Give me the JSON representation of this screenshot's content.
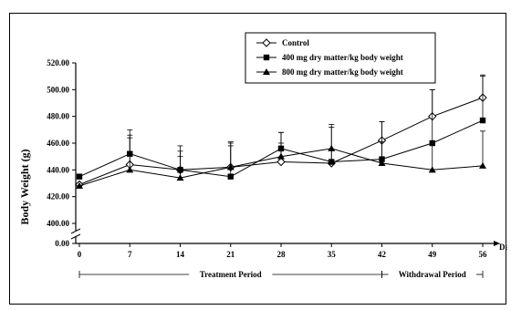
{
  "chart_data": {
    "type": "line",
    "title": "",
    "ylabel": "Body Weight (g)",
    "xlabel": "Da",
    "x": [
      0,
      7,
      14,
      21,
      28,
      35,
      42,
      49,
      56
    ],
    "ylim": [
      400,
      520
    ],
    "yticks": [
      "0.00",
      "400.00",
      "420.00",
      "440.00",
      "460.00",
      "480.00",
      "500.00",
      "520.00"
    ],
    "axis_break": true,
    "grid": false,
    "legend_position": "top-center",
    "periods": [
      {
        "label": "Treatment Period",
        "from": 0,
        "to": 42
      },
      {
        "label": "Withdrawal Period",
        "from": 42,
        "to": 56
      }
    ],
    "series": [
      {
        "name": "Control",
        "marker": "open-diamond",
        "values": [
          429,
          444,
          440,
          442,
          446,
          445,
          462,
          480,
          494
        ],
        "error": [
          0,
          20,
          14,
          16,
          14,
          10,
          14,
          20,
          16
        ]
      },
      {
        "name": "400 mg dry matter/kg body weight",
        "marker": "filled-square",
        "values": [
          435,
          452,
          440,
          435,
          456,
          446,
          448,
          460,
          477
        ],
        "error": [
          0,
          18,
          18,
          26,
          12,
          28,
          28,
          40,
          34
        ]
      },
      {
        "name": "800 mg dry matter/kg body weight",
        "marker": "filled-triangle",
        "values": [
          428,
          440,
          434,
          442,
          450,
          456,
          445,
          440,
          443
        ],
        "error": [
          0,
          26,
          16,
          18,
          18,
          16,
          16,
          20,
          26
        ]
      }
    ]
  }
}
